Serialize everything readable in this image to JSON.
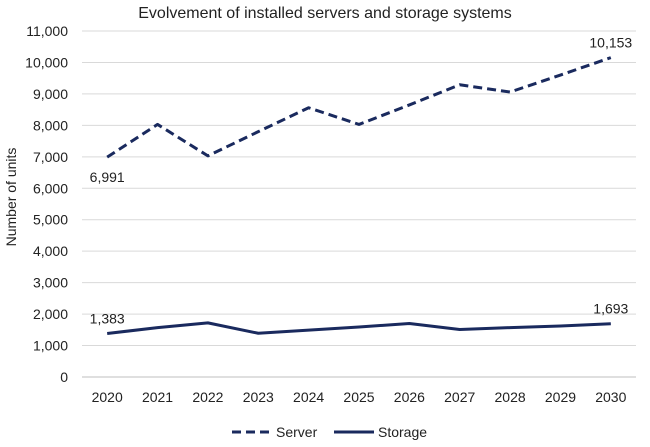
{
  "chart_data": {
    "type": "line",
    "title": "Evolvement of installed servers and storage systems",
    "xlabel": "",
    "ylabel": "Number  of units",
    "categories": [
      "2020",
      "2021",
      "2022",
      "2023",
      "2024",
      "2025",
      "2026",
      "2027",
      "2028",
      "2029",
      "2030"
    ],
    "ylim": [
      0,
      11000
    ],
    "yticks": [
      0,
      1000,
      2000,
      3000,
      4000,
      5000,
      6000,
      7000,
      8000,
      9000,
      10000,
      11000
    ],
    "ytick_labels": [
      "0",
      "1,000",
      "2,000",
      "3,000",
      "4,000",
      "5,000",
      "6,000",
      "7,000",
      "8,000",
      "9,000",
      "10,000",
      "11,000"
    ],
    "grid": "horizontal",
    "legend_position": "bottom",
    "series": [
      {
        "name": "Server",
        "style": "dashed",
        "color": "#1a2a5e",
        "values": [
          6991,
          8030,
          7030,
          7800,
          8560,
          8030,
          8650,
          9290,
          9060,
          9600,
          10153
        ],
        "data_labels": [
          {
            "index": 0,
            "text": "6,991",
            "anchor": "below"
          },
          {
            "index": 10,
            "text": "10,153",
            "anchor": "above"
          }
        ]
      },
      {
        "name": "Storage",
        "style": "solid",
        "color": "#1a2a5e",
        "values": [
          1383,
          1570,
          1720,
          1390,
          1490,
          1590,
          1700,
          1510,
          1570,
          1620,
          1693
        ],
        "data_labels": [
          {
            "index": 0,
            "text": "1,383",
            "anchor": "above"
          },
          {
            "index": 10,
            "text": "1,693",
            "anchor": "above"
          }
        ]
      }
    ]
  }
}
